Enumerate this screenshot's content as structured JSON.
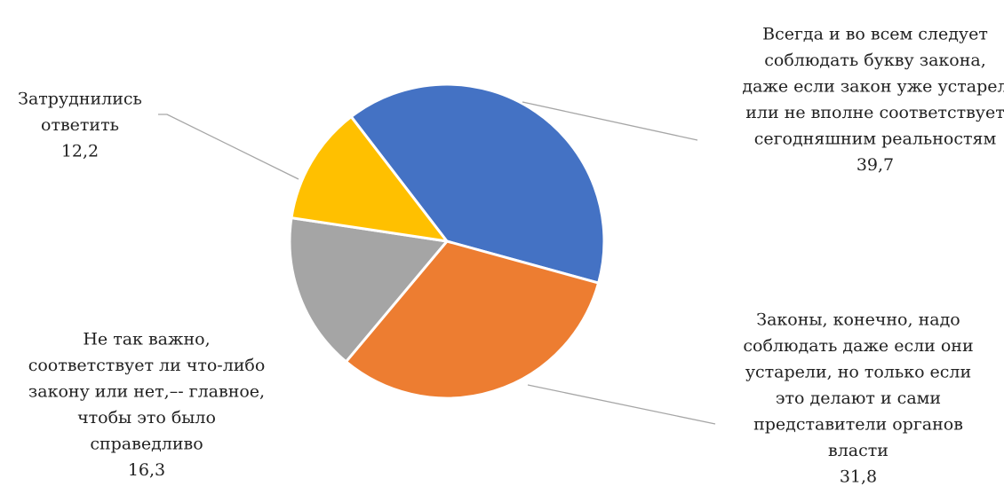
{
  "chart_data": {
    "type": "pie",
    "start_angle_deg": -37.5,
    "direction": "clockwise",
    "slices": [
      {
        "label_lines": [
          "Всегда и во всем следует",
          "соблюдать букву закона,",
          "даже если закон уже устарел",
          "или не вполне соответствует",
          "сегодняшним реальностям"
        ],
        "value": 39.7,
        "value_text": "39,7",
        "color": "#4472C4"
      },
      {
        "label_lines": [
          "Законы, конечно, надо",
          "соблюдать даже если они",
          "устарели, но только если",
          "это делают и сами",
          "представители органов",
          "власти"
        ],
        "value": 31.8,
        "value_text": "31,8",
        "color": "#ED7D31"
      },
      {
        "label_lines": [
          "Не так важно,",
          "соответствует ли что-либо",
          "закону или нет,–- главное,",
          "чтобы это было",
          "справедливо"
        ],
        "value": 16.3,
        "value_text": "16,3",
        "color": "#A5A5A5"
      },
      {
        "label_lines": [
          "Затруднились",
          "ответить"
        ],
        "value": 12.2,
        "value_text": "12,2",
        "color": "#FFC000"
      }
    ],
    "leader_line_color": "#A6A6A6",
    "slice_border_color": "#FFFFFF"
  }
}
